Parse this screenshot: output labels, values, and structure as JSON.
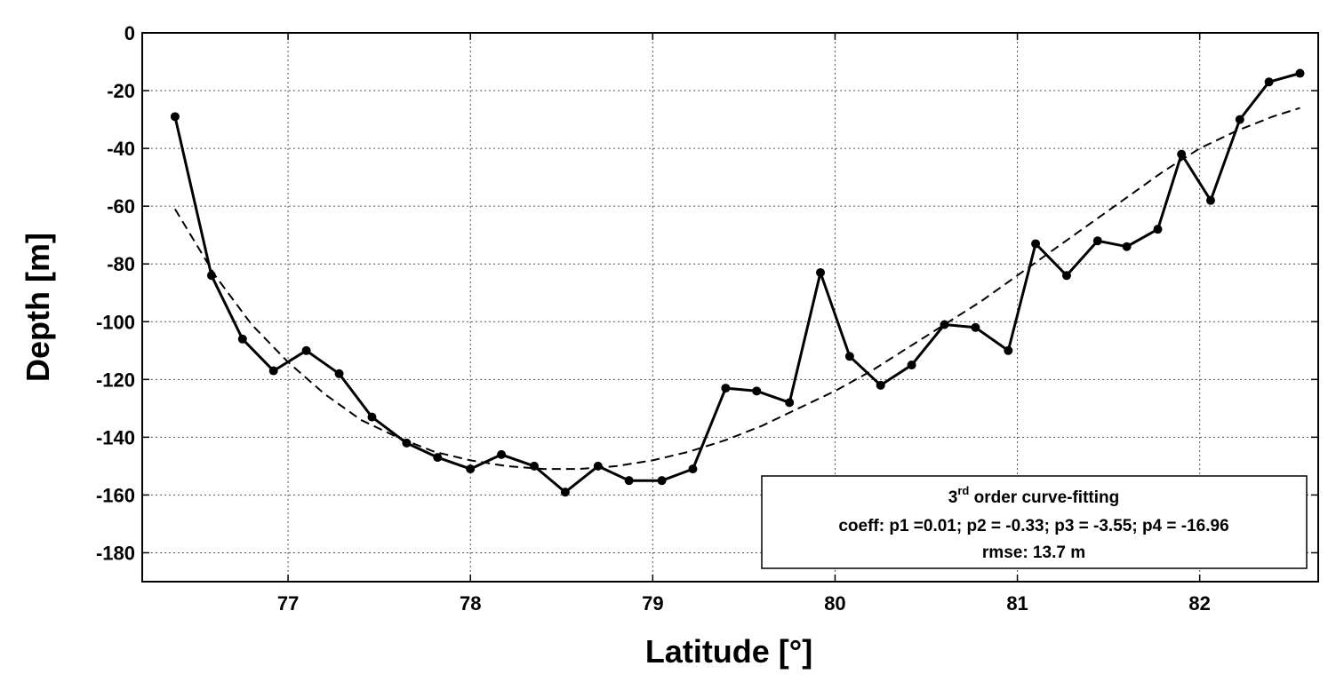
{
  "chart_data": {
    "type": "line",
    "xlabel": "Latitude [°]",
    "ylabel": "Depth [m]",
    "xlim": [
      76.2,
      82.65
    ],
    "ylim": [
      -190,
      0
    ],
    "xticks": [
      77,
      78,
      79,
      80,
      81,
      82
    ],
    "yticks": [
      0,
      -20,
      -40,
      -60,
      -80,
      -100,
      -120,
      -140,
      -160,
      -180
    ],
    "grid": true,
    "legend_position": "bottom-right",
    "legend": {
      "title_main": "3",
      "title_sup": "rd",
      "title_rest": " order curve-fitting",
      "coeff_line": "coeff: p1 =0.01; p2 = -0.33; p3 = -3.55; p4 = -16.96",
      "rmse_line": "rmse: 13.7 m"
    },
    "series": [
      {
        "style": "solid-with-markers",
        "color": "#000000",
        "x": [
          76.38,
          76.58,
          76.75,
          76.92,
          77.1,
          77.28,
          77.46,
          77.65,
          77.82,
          78.0,
          78.17,
          78.35,
          78.52,
          78.7,
          78.87,
          79.05,
          79.22,
          79.4,
          79.57,
          79.75,
          79.92,
          80.08,
          80.25,
          80.42,
          80.6,
          80.77,
          80.95,
          81.1,
          81.27,
          81.44,
          81.6,
          81.77,
          81.9,
          82.06,
          82.22,
          82.38,
          82.55
        ],
        "y": [
          -29,
          -84,
          -106,
          -117,
          -110,
          -118,
          -133,
          -142,
          -147,
          -151,
          -146,
          -150,
          -159,
          -150,
          -155,
          -155,
          -151,
          -123,
          -124,
          -128,
          -83,
          -112,
          -122,
          -115,
          -101,
          -102,
          -110,
          -73,
          -84,
          -72,
          -74,
          -68,
          -42,
          -58,
          -30,
          -17,
          -14
        ]
      },
      {
        "style": "dashed-fit",
        "color": "#000000",
        "x": [
          76.38,
          76.6,
          76.8,
          77.0,
          77.2,
          77.4,
          77.6,
          77.8,
          78.0,
          78.2,
          78.4,
          78.6,
          78.8,
          79.0,
          79.2,
          79.4,
          79.6,
          79.8,
          80.0,
          80.2,
          80.4,
          80.6,
          80.8,
          81.0,
          81.2,
          81.4,
          81.6,
          81.8,
          82.0,
          82.2,
          82.4,
          82.55
        ],
        "y": [
          -61,
          -84,
          -101,
          -114,
          -125,
          -134,
          -140,
          -145,
          -148,
          -150,
          -151,
          -151,
          -150,
          -148,
          -145,
          -141,
          -136,
          -130,
          -124,
          -117,
          -109,
          -101,
          -93,
          -84,
          -75,
          -66,
          -57,
          -48,
          -40,
          -34,
          -29,
          -26
        ]
      }
    ]
  }
}
